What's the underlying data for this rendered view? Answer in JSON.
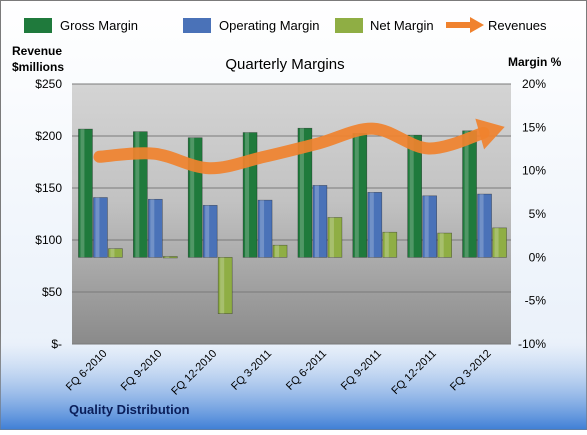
{
  "chart_data": {
    "type": "bar",
    "title": "Quarterly Margins",
    "left_axis": {
      "label_line1": "Revenue",
      "label_line2": "$millions",
      "range": [
        0,
        250
      ],
      "ticks": [
        0,
        50,
        100,
        150,
        200,
        250
      ],
      "tick_labels": [
        "$-",
        "$50",
        "$100",
        "$150",
        "$200",
        "$250"
      ]
    },
    "right_axis": {
      "label": "Margin %",
      "range": [
        -10,
        20
      ],
      "ticks": [
        -10,
        -5,
        0,
        5,
        10,
        15,
        20
      ],
      "tick_labels": [
        "-10%",
        "-5%",
        "0%",
        "5%",
        "10%",
        "15%",
        "20%"
      ]
    },
    "categories": [
      "FQ 6-2010",
      "FQ 9-2010",
      "FQ 12-2010",
      "FQ 3-2011",
      "FQ 6-2011",
      "FQ 9-2011",
      "FQ 12-2011",
      "FQ 3-2012"
    ],
    "series": [
      {
        "name": "Gross Margin",
        "axis": "right",
        "kind": "bar",
        "color": "#1f7a3c",
        "values": [
          14.8,
          14.5,
          13.8,
          14.4,
          14.9,
          14.3,
          14.1,
          14.6
        ]
      },
      {
        "name": "Operating Margin",
        "axis": "right",
        "kind": "bar",
        "color": "#4a72b8",
        "values": [
          6.9,
          6.7,
          6.0,
          6.6,
          8.3,
          7.5,
          7.1,
          7.3
        ]
      },
      {
        "name": "Net Margin",
        "axis": "right",
        "kind": "bar",
        "color": "#8fae44",
        "values": [
          1.0,
          0.1,
          -6.5,
          1.4,
          4.6,
          2.9,
          2.8,
          3.4
        ]
      },
      {
        "name": "Revenues",
        "axis": "left",
        "kind": "line",
        "color": "#f0822e",
        "values": [
          180,
          183,
          169,
          180,
          193,
          207,
          188,
          203
        ]
      }
    ],
    "footer_text": "Quality Distribution",
    "legend_position": "top",
    "grid": true
  }
}
